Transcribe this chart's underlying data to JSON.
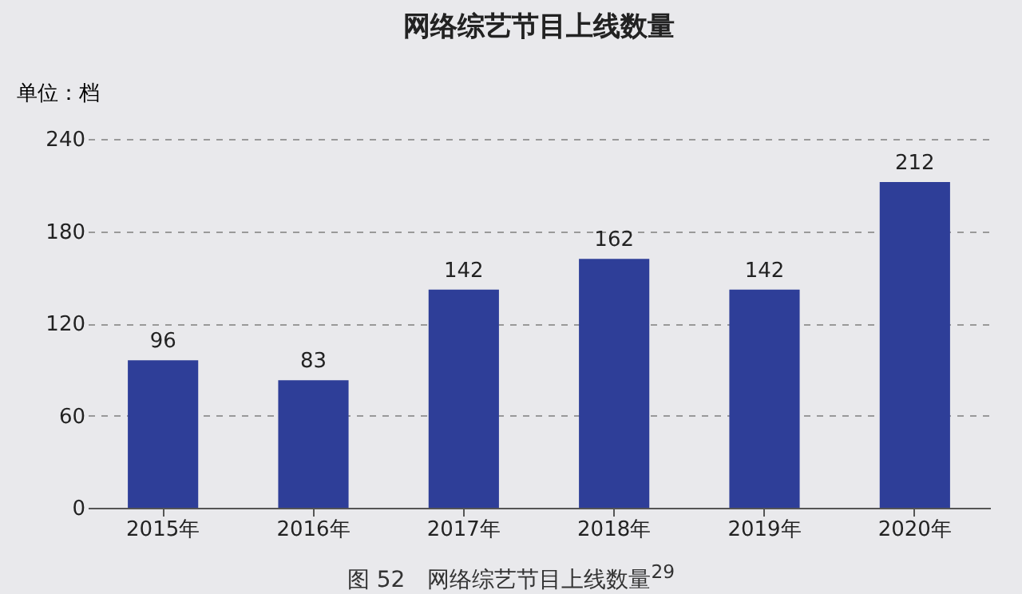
{
  "chart_data": {
    "type": "bar",
    "title": "网络综艺节目上线数量",
    "ylabel": "单位：档",
    "categories": [
      "2015年",
      "2016年",
      "2017年",
      "2018年",
      "2019年",
      "2020年"
    ],
    "values": [
      96,
      83,
      142,
      162,
      142,
      212
    ],
    "color": "#2e3e98",
    "ylim": [
      0,
      240
    ],
    "yticks": [
      0,
      60,
      120,
      180,
      240
    ],
    "grid": "y",
    "data_labels": true,
    "annotations": [
      "图 52　网络综艺节目上线数量$^{29}$"
    ]
  }
}
